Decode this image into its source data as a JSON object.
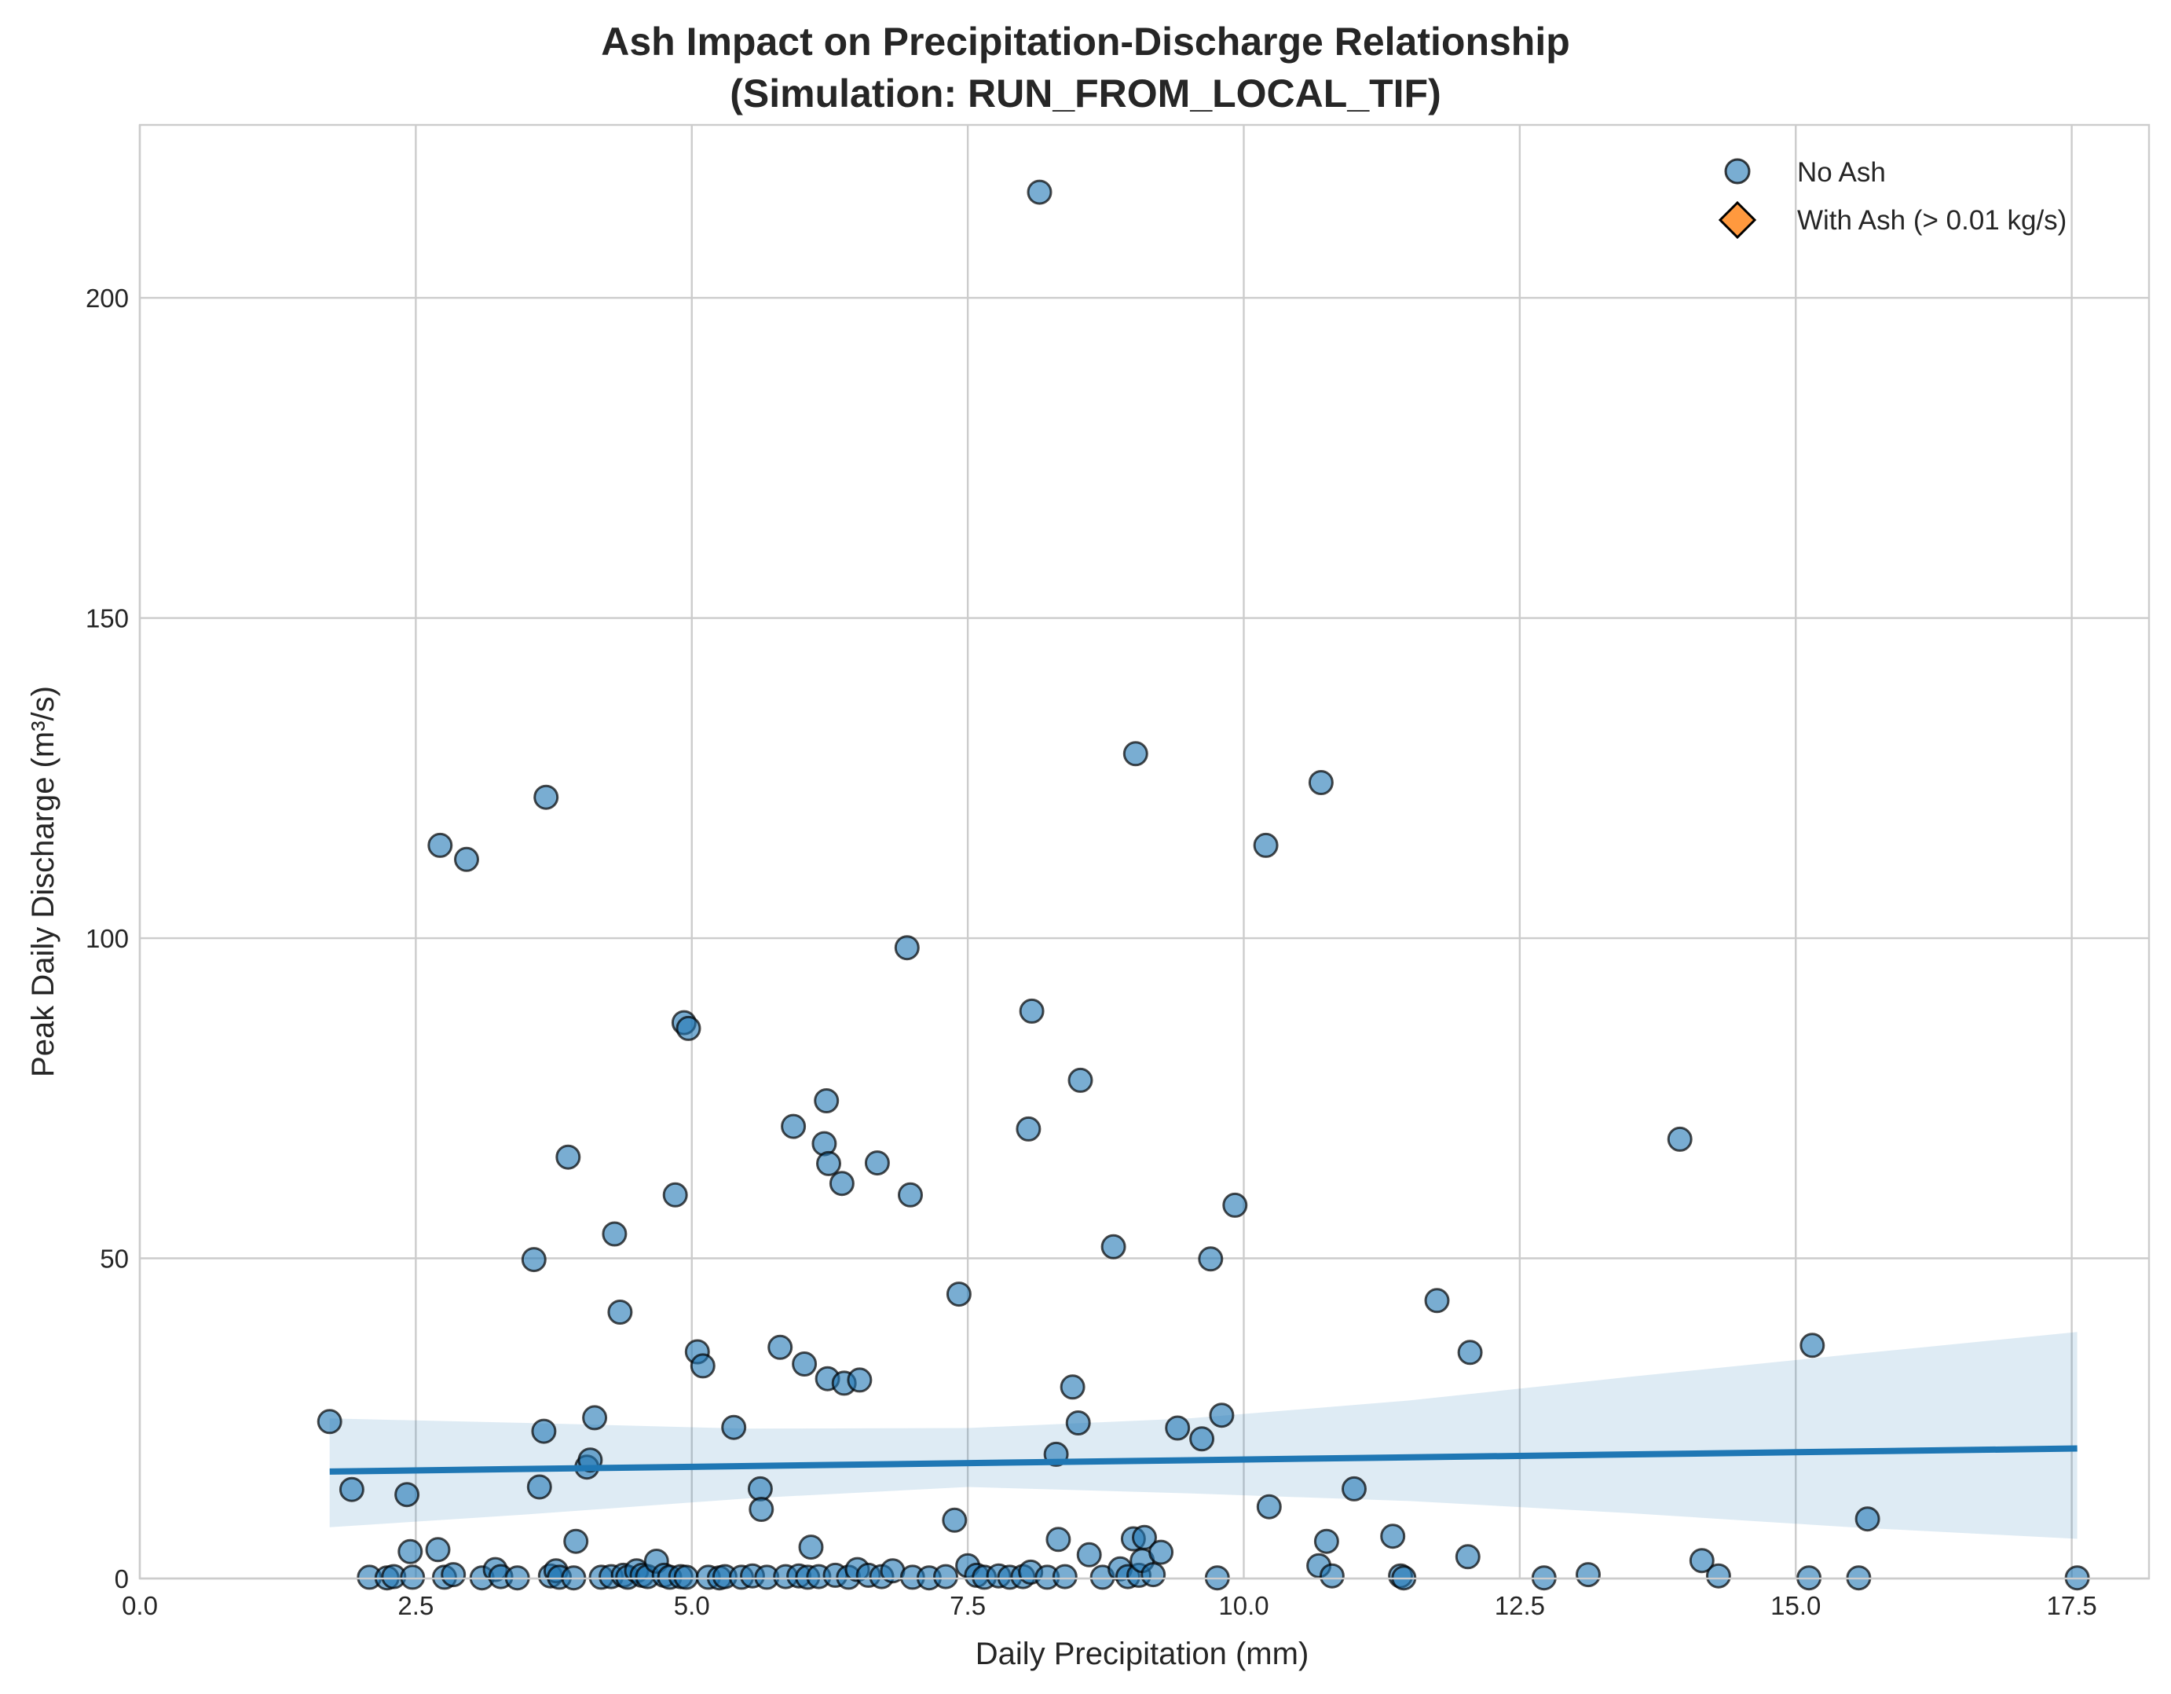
{
  "chart_data": {
    "type": "scatter",
    "title": "Ash Impact on Precipitation-Discharge Relationship",
    "subtitle": "(Simulation: RUN_FROM_LOCAL_TIF)",
    "xlabel": "Daily Precipitation (mm)",
    "ylabel": "Peak Daily Discharge (m³/s)",
    "xlim": [
      0,
      18.2
    ],
    "ylim": [
      0,
      227
    ],
    "xticks": [
      0,
      2.5,
      5,
      7.5,
      10,
      12.5,
      15,
      17.5
    ],
    "xtick_labels": [
      "0.0",
      "2.5",
      "5.0",
      "7.5",
      "10.0",
      "12.5",
      "15.0",
      "17.5"
    ],
    "yticks": [
      0,
      50,
      100,
      150,
      200
    ],
    "ytick_labels": [
      "0",
      "50",
      "100",
      "150",
      "200"
    ],
    "grid": true,
    "legend_position": "top-right",
    "colors": {
      "no_ash": "#1f77b4",
      "with_ash": "#ff7f0e",
      "regression": "#1f77b4",
      "grid": "#cccccc",
      "text": "#262626"
    },
    "series": [
      {
        "name": "No Ash",
        "marker": "circle",
        "points": [
          [
            1.72,
            24.5
          ],
          [
            1.92,
            13.9
          ],
          [
            2.08,
            0.2
          ],
          [
            2.24,
            0.1
          ],
          [
            2.3,
            0.3
          ],
          [
            2.42,
            13.1
          ],
          [
            2.45,
            4.2
          ],
          [
            2.47,
            0.2
          ],
          [
            2.7,
            4.5
          ],
          [
            2.72,
            114.5
          ],
          [
            2.76,
            0.2
          ],
          [
            2.84,
            0.6
          ],
          [
            2.96,
            112.3
          ],
          [
            3.1,
            0.1
          ],
          [
            3.22,
            1.4
          ],
          [
            3.27,
            0.3
          ],
          [
            3.42,
            0.1
          ],
          [
            3.57,
            49.8
          ],
          [
            3.62,
            14.3
          ],
          [
            3.66,
            23.0
          ],
          [
            3.68,
            122.0
          ],
          [
            3.72,
            0.4
          ],
          [
            3.77,
            1.2
          ],
          [
            3.8,
            0.2
          ],
          [
            3.88,
            65.8
          ],
          [
            3.93,
            0.1
          ],
          [
            3.95,
            5.8
          ],
          [
            4.05,
            17.4
          ],
          [
            4.08,
            18.5
          ],
          [
            4.12,
            25.1
          ],
          [
            4.18,
            0.2
          ],
          [
            4.27,
            0.3
          ],
          [
            4.3,
            53.8
          ],
          [
            4.35,
            41.6
          ],
          [
            4.38,
            0.5
          ],
          [
            4.42,
            0.2
          ],
          [
            4.5,
            1.2
          ],
          [
            4.55,
            0.5
          ],
          [
            4.6,
            0.3
          ],
          [
            4.68,
            2.7
          ],
          [
            4.75,
            0.5
          ],
          [
            4.8,
            0.2
          ],
          [
            4.85,
            59.9
          ],
          [
            4.9,
            0.3
          ],
          [
            4.93,
            86.8
          ],
          [
            4.95,
            0.2
          ],
          [
            4.97,
            85.9
          ],
          [
            5.05,
            35.4
          ],
          [
            5.1,
            33.2
          ],
          [
            5.15,
            0.2
          ],
          [
            5.25,
            0.1
          ],
          [
            5.3,
            0.3
          ],
          [
            5.38,
            23.6
          ],
          [
            5.45,
            0.2
          ],
          [
            5.55,
            0.4
          ],
          [
            5.62,
            14.0
          ],
          [
            5.63,
            10.8
          ],
          [
            5.68,
            0.2
          ],
          [
            5.8,
            36.1
          ],
          [
            5.85,
            0.3
          ],
          [
            5.92,
            70.6
          ],
          [
            5.97,
            0.4
          ],
          [
            6.02,
            33.5
          ],
          [
            6.05,
            0.2
          ],
          [
            6.08,
            4.9
          ],
          [
            6.15,
            0.3
          ],
          [
            6.2,
            67.9
          ],
          [
            6.22,
            74.6
          ],
          [
            6.23,
            31.2
          ],
          [
            6.24,
            64.8
          ],
          [
            6.3,
            0.5
          ],
          [
            6.36,
            61.7
          ],
          [
            6.38,
            30.5
          ],
          [
            6.42,
            0.2
          ],
          [
            6.5,
            1.4
          ],
          [
            6.52,
            31.0
          ],
          [
            6.6,
            0.5
          ],
          [
            6.68,
            64.9
          ],
          [
            6.72,
            0.3
          ],
          [
            6.82,
            1.2
          ],
          [
            6.95,
            98.5
          ],
          [
            6.98,
            59.9
          ],
          [
            7.0,
            0.2
          ],
          [
            7.15,
            0.1
          ],
          [
            7.3,
            0.3
          ],
          [
            7.38,
            9.1
          ],
          [
            7.42,
            44.4
          ],
          [
            7.5,
            2.0
          ],
          [
            7.58,
            0.5
          ],
          [
            7.65,
            0.2
          ],
          [
            7.78,
            0.4
          ],
          [
            7.88,
            0.2
          ],
          [
            8.0,
            0.3
          ],
          [
            8.05,
            70.2
          ],
          [
            8.07,
            1.0
          ],
          [
            8.08,
            88.6
          ],
          [
            8.15,
            216.5
          ],
          [
            8.22,
            0.2
          ],
          [
            8.3,
            19.4
          ],
          [
            8.32,
            6.1
          ],
          [
            8.38,
            0.3
          ],
          [
            8.45,
            29.9
          ],
          [
            8.5,
            24.3
          ],
          [
            8.52,
            77.8
          ],
          [
            8.6,
            3.7
          ],
          [
            8.72,
            0.2
          ],
          [
            8.82,
            51.8
          ],
          [
            8.88,
            1.5
          ],
          [
            8.95,
            0.3
          ],
          [
            9.0,
            6.2
          ],
          [
            9.02,
            128.8
          ],
          [
            9.05,
            0.5
          ],
          [
            9.08,
            2.8
          ],
          [
            9.1,
            6.4
          ],
          [
            9.18,
            0.6
          ],
          [
            9.25,
            4.1
          ],
          [
            9.4,
            23.5
          ],
          [
            9.62,
            21.8
          ],
          [
            9.7,
            49.9
          ],
          [
            9.76,
            0.1
          ],
          [
            9.8,
            25.5
          ],
          [
            9.92,
            58.3
          ],
          [
            10.2,
            114.5
          ],
          [
            10.23,
            11.2
          ],
          [
            10.68,
            2.0
          ],
          [
            10.7,
            124.3
          ],
          [
            10.75,
            5.8
          ],
          [
            10.8,
            0.4
          ],
          [
            11.0,
            14.0
          ],
          [
            11.35,
            6.6
          ],
          [
            11.42,
            0.4
          ],
          [
            11.45,
            0.1
          ],
          [
            11.75,
            43.4
          ],
          [
            12.03,
            3.4
          ],
          [
            12.05,
            35.3
          ],
          [
            12.72,
            0.1
          ],
          [
            13.12,
            0.6
          ],
          [
            13.95,
            68.6
          ],
          [
            14.15,
            2.8
          ],
          [
            14.3,
            0.4
          ],
          [
            15.12,
            0.1
          ],
          [
            15.15,
            36.4
          ],
          [
            15.57,
            0.1
          ],
          [
            15.65,
            9.3
          ],
          [
            17.55,
            0.1
          ]
        ]
      },
      {
        "name": "With Ash (> 0.01 kg/s)",
        "marker": "diamond",
        "points": []
      }
    ],
    "regression": {
      "x_range": [
        1.72,
        17.55
      ],
      "y_start": 16.7,
      "y_end": 20.3,
      "ci_band": {
        "x": [
          1.72,
          3.5,
          5.5,
          7.5,
          9.5,
          11.5,
          13.5,
          15.5,
          17.55
        ],
        "upper": [
          25.0,
          24.3,
          23.4,
          23.5,
          25.0,
          27.8,
          31.5,
          35.0,
          38.5
        ],
        "lower": [
          8.0,
          10.0,
          12.5,
          14.3,
          13.3,
          12.1,
          10.2,
          8.0,
          6.2
        ]
      }
    }
  }
}
